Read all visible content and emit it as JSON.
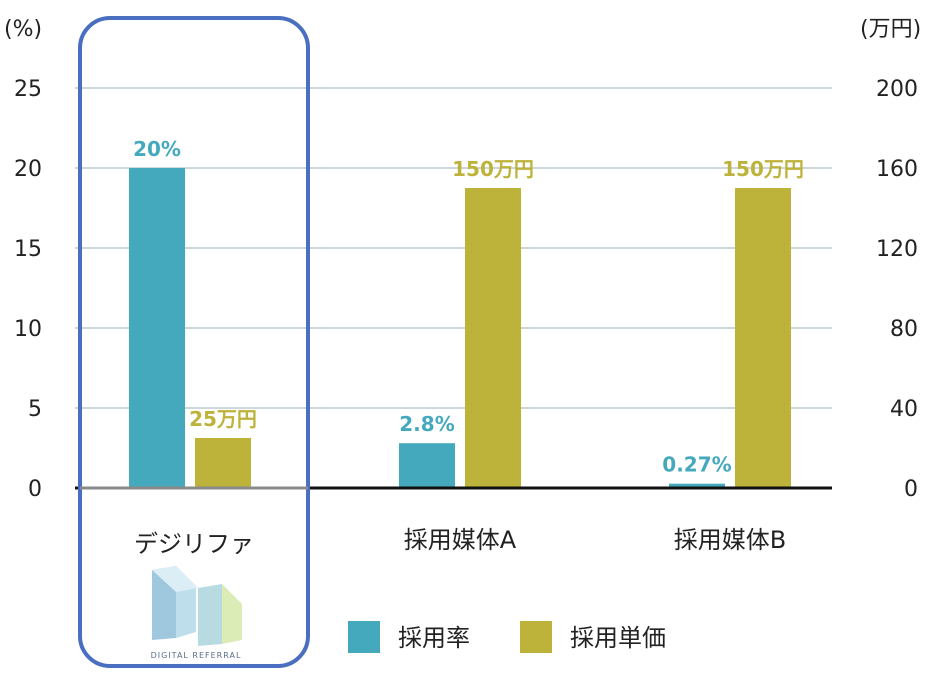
{
  "chart_data": {
    "type": "bar",
    "categories": [
      "デジリファ",
      "採用媒体A",
      "採用媒体B"
    ],
    "left_axis": {
      "unit": "(%)",
      "ticks": [
        "0",
        "5",
        "10",
        "15",
        "20",
        "25"
      ],
      "ylim": [
        0,
        25
      ]
    },
    "right_axis": {
      "unit": "(万円)",
      "ticks": [
        "0",
        "40",
        "80",
        "120",
        "160",
        "200"
      ],
      "ylim": [
        0,
        200
      ]
    },
    "series": [
      {
        "name": "採用率",
        "axis": "left",
        "color": "#45a9bd",
        "values": [
          20,
          2.8,
          0.27
        ],
        "labels": [
          "20%",
          "2.8%",
          "0.27%"
        ]
      },
      {
        "name": "採用単価",
        "axis": "right",
        "color": "#bdb23a",
        "values": [
          25,
          150,
          150
        ],
        "labels": [
          "25万円",
          "150万円",
          "150万円"
        ]
      }
    ],
    "grid": true,
    "legend_position": "bottom-right",
    "highlight": {
      "category": "デジリファ",
      "color": "#4a6fc0",
      "logo_text": "DIGITAL REFERRAL"
    }
  }
}
